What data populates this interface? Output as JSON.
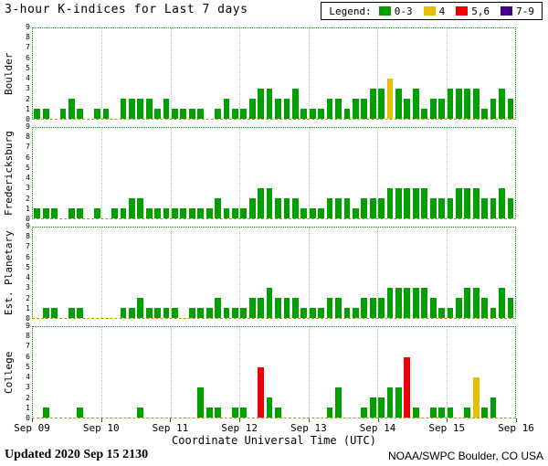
{
  "title": "3-hour K-indices for Last 7 days",
  "legend": {
    "label": "Legend:",
    "entries": [
      {
        "label": "0-3",
        "color": "#00A000"
      },
      {
        "label": "4",
        "color": "#E6C000"
      },
      {
        "label": "5,6",
        "color": "#EE0000"
      },
      {
        "label": "7-9",
        "color": "#440088"
      }
    ]
  },
  "footer": {
    "updated_label": "Updated",
    "updated_value": "2020 Sep 15 2130",
    "source": "NOAA/SWPC Boulder, CO USA"
  },
  "chart_data": {
    "type": "bar",
    "title": "3-hour K-indices for Last 7 days",
    "xlabel": "Coordinate Universal Time (UTC)",
    "ylim": [
      0,
      9
    ],
    "yticks": [
      0,
      1,
      2,
      3,
      4,
      5,
      6,
      7,
      8,
      9
    ],
    "x_tick_labels": [
      "Sep 09",
      "Sep 10",
      "Sep 11",
      "Sep 12",
      "Sep 13",
      "Sep 14",
      "Sep 15",
      "Sep 16"
    ],
    "hours_per_bar": 3,
    "bars_per_day": 8,
    "layout": {
      "legend_position": "top-right",
      "panels_share_x": true,
      "grid": "day-gridlines",
      "frame": "green-dotted"
    },
    "color_rule": {
      "0-3": "#00A000",
      "4": "#E6C000",
      "5-6": "#EE0000",
      "7-9": "#440088"
    },
    "series": [
      {
        "name": "Boulder",
        "values": [
          1,
          1,
          0,
          1,
          2,
          1,
          0,
          1,
          1,
          0,
          2,
          2,
          2,
          2,
          1,
          2,
          1,
          1,
          1,
          1,
          0,
          1,
          2,
          1,
          1,
          2,
          3,
          3,
          2,
          2,
          3,
          1,
          1,
          1,
          2,
          2,
          1,
          2,
          2,
          3,
          3,
          4,
          3,
          2,
          3,
          1,
          2,
          2,
          3,
          3,
          3,
          3,
          1,
          2,
          3,
          2
        ]
      },
      {
        "name": "Fredericksburg",
        "values": [
          1,
          1,
          1,
          0,
          1,
          1,
          0,
          1,
          0,
          1,
          1,
          2,
          2,
          1,
          1,
          1,
          1,
          1,
          1,
          1,
          1,
          2,
          1,
          1,
          1,
          2,
          3,
          3,
          2,
          2,
          2,
          1,
          1,
          1,
          2,
          2,
          2,
          1,
          2,
          2,
          2,
          3,
          3,
          3,
          3,
          3,
          2,
          2,
          2,
          3,
          3,
          3,
          2,
          2,
          3,
          2
        ]
      },
      {
        "name": "Est. Planetary",
        "values": [
          0,
          1,
          1,
          0,
          1,
          1,
          0,
          0,
          0,
          0,
          1,
          1,
          2,
          1,
          1,
          1,
          1,
          0,
          1,
          1,
          1,
          2,
          1,
          1,
          1,
          2,
          2,
          3,
          2,
          2,
          2,
          1,
          1,
          1,
          2,
          2,
          1,
          1,
          2,
          2,
          2,
          3,
          3,
          3,
          3,
          3,
          2,
          1,
          1,
          2,
          3,
          3,
          2,
          1,
          3,
          2
        ]
      },
      {
        "name": "College",
        "values": [
          0,
          1,
          0,
          0,
          0,
          1,
          0,
          0,
          0,
          0,
          0,
          0,
          1,
          0,
          0,
          0,
          0,
          0,
          0,
          3,
          1,
          1,
          0,
          1,
          1,
          0,
          5,
          2,
          1,
          0,
          0,
          0,
          0,
          0,
          1,
          3,
          0,
          0,
          1,
          2,
          2,
          3,
          3,
          6,
          1,
          0,
          1,
          1,
          1,
          0,
          1,
          4,
          1,
          2,
          0,
          0
        ]
      }
    ]
  }
}
